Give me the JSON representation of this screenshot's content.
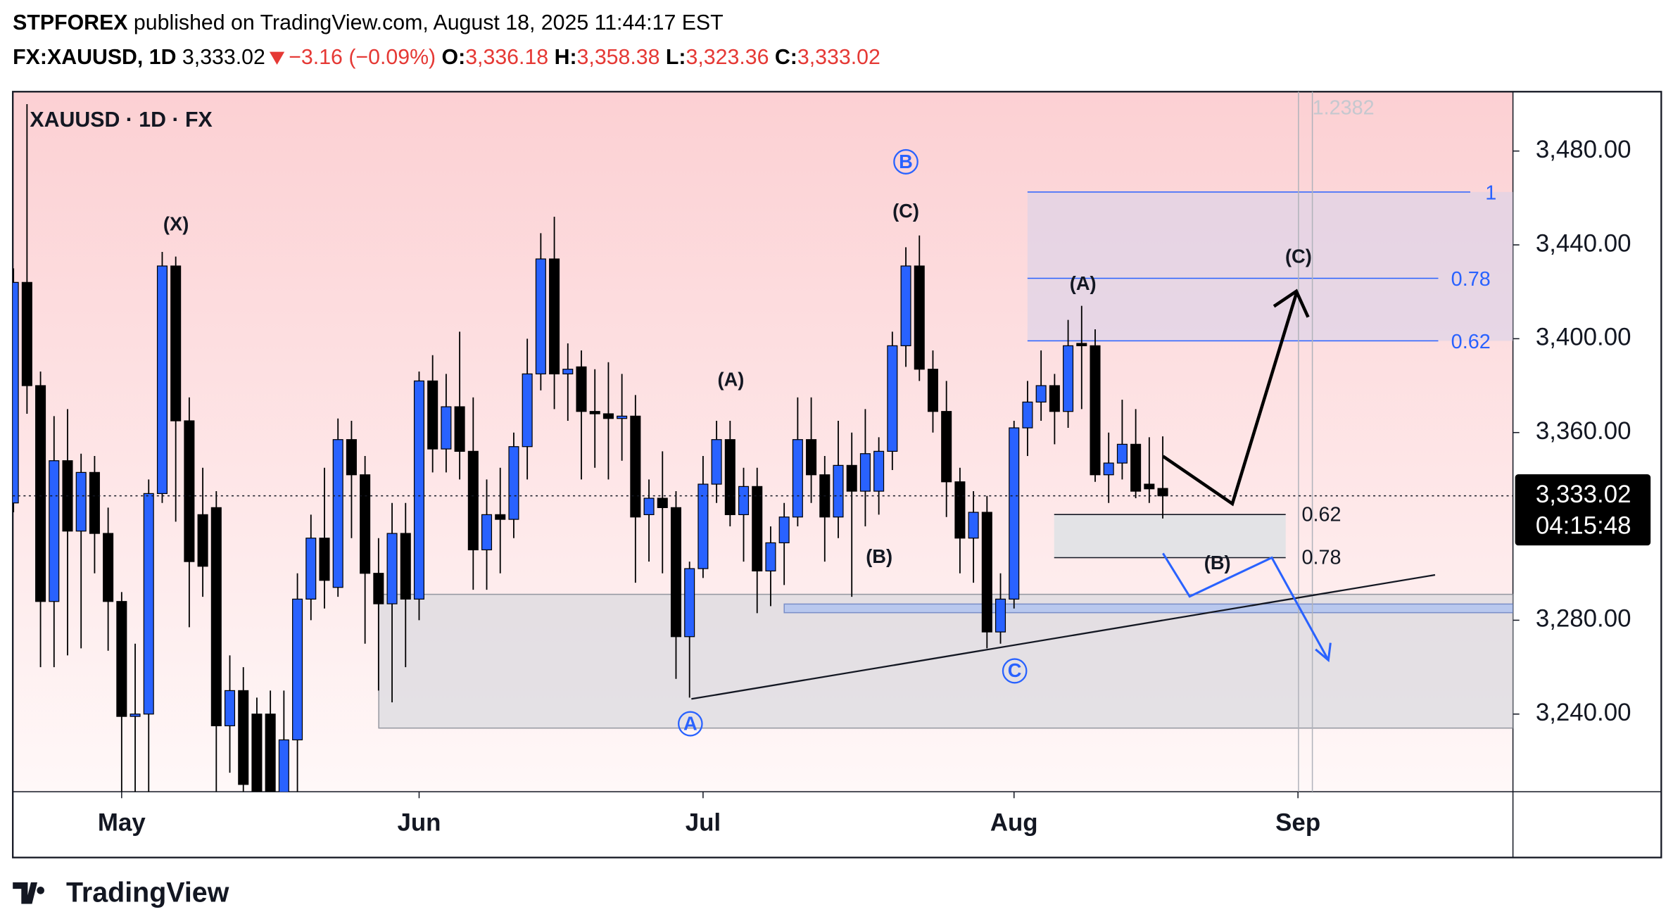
{
  "header": {
    "author": "STPFOREX",
    "published": "published on TradingView.com, August 18, 2025 11:44:17 EST",
    "symbol": "FX:XAUUSD, 1D",
    "price": "3,333.02",
    "change": "−3.16 (−0.09%)",
    "o_label": "O:",
    "o": "3,336.18",
    "h_label": "H:",
    "h": "3,358.38",
    "l_label": "L:",
    "l": "3,323.36",
    "c_label": "C:",
    "c": "3,333.02"
  },
  "footer": {
    "brand": "TradingView"
  },
  "chart_data": {
    "type": "candlestick",
    "title": "XAUUSD · 1D · FX",
    "up_color": "#2962ff",
    "down_color": "#000000",
    "xlim": [
      -0.05,
      110.9
    ],
    "ylim": [
      3206.9,
      3505.3
    ],
    "xticks": [
      {
        "value": 8,
        "label": "May"
      },
      {
        "value": 30,
        "label": "Jun"
      },
      {
        "value": 51,
        "label": "Jul"
      },
      {
        "value": 74,
        "label": "Aug"
      },
      {
        "value": 95,
        "label": "Sep"
      }
    ],
    "yticks": [
      {
        "value": 3240,
        "label": "3,240.00"
      },
      {
        "value": 3280,
        "label": "3,280.00"
      },
      {
        "value": 3360,
        "label": "3,360.00"
      },
      {
        "value": 3400,
        "label": "3,400.00"
      },
      {
        "value": 3440,
        "label": "3,440.00"
      },
      {
        "value": 3480,
        "label": "3,480.00"
      }
    ],
    "last_price": {
      "value": 3333.02,
      "label": "3,333.02"
    },
    "countdown": "04:15:48",
    "open": [
      3330,
      3424,
      3380,
      3288,
      3348,
      3318,
      3343,
      3317,
      3288,
      3239,
      3240,
      3334,
      3431,
      3365,
      3325,
      3328,
      3235,
      3250,
      3240,
      3240,
      3205,
      3229,
      3289,
      3315,
      3294,
      3357,
      3342,
      3300,
      3287,
      3317,
      3289,
      3382,
      3353,
      3371,
      3352,
      3310,
      3325,
      3323,
      3354,
      3385,
      3434,
      3385,
      3388,
      3369,
      3368,
      3366,
      3367,
      3325,
      3332,
      3328,
      3273,
      3302,
      3338,
      3357,
      3325,
      3337,
      3301,
      3313,
      3324,
      3357,
      3342,
      3324,
      3346,
      3335,
      3335,
      3352,
      3397,
      3431,
      3387,
      3369,
      3339,
      3315,
      3326,
      3275,
      3289,
      3362,
      3373,
      3380,
      3369,
      3398,
      3397,
      3342,
      3347,
      3355,
      3338,
      3336.18
    ],
    "high": [
      3430,
      3500,
      3386,
      3367,
      3370,
      3351,
      3350,
      3328,
      3292,
      3270,
      3340,
      3437,
      3435,
      3375,
      3345,
      3335,
      3265,
      3260,
      3247,
      3250,
      3250,
      3300,
      3325,
      3345,
      3366,
      3365,
      3350,
      3315,
      3330,
      3330,
      3386,
      3393,
      3385,
      3403,
      3375,
      3340,
      3345,
      3360,
      3400,
      3445,
      3452,
      3398,
      3395,
      3387,
      3390,
      3385,
      3376,
      3340,
      3352,
      3335,
      3305,
      3350,
      3365,
      3365,
      3345,
      3345,
      3320,
      3330,
      3375,
      3375,
      3350,
      3365,
      3360,
      3370,
      3358,
      3403,
      3439,
      3444,
      3395,
      3382,
      3345,
      3335,
      3333,
      3300,
      3365,
      3382,
      3395,
      3385,
      3408,
      3414,
      3404,
      3360,
      3374,
      3370,
      3358,
      3358.38
    ],
    "low": [
      3326,
      3368,
      3260,
      3260,
      3265,
      3268,
      3300,
      3267,
      3202,
      3202,
      3202,
      3330,
      3322,
      3277,
      3290,
      3207,
      3215,
      3200,
      3190,
      3200,
      3200,
      3205,
      3280,
      3285,
      3290,
      3315,
      3270,
      3250,
      3245,
      3260,
      3280,
      3343,
      3343,
      3340,
      3293,
      3293,
      3300,
      3315,
      3340,
      3378,
      3370,
      3365,
      3340,
      3345,
      3340,
      3348,
      3296,
      3305,
      3300,
      3255,
      3247,
      3298,
      3330,
      3320,
      3305,
      3283,
      3286,
      3295,
      3320,
      3330,
      3305,
      3315,
      3290,
      3320,
      3325,
      3344,
      3388,
      3382,
      3360,
      3324,
      3300,
      3296,
      3268,
      3270,
      3285,
      3350,
      3365,
      3355,
      3362,
      3370,
      3339,
      3330,
      3340,
      3332,
      3330,
      3323.36
    ],
    "close": [
      3424,
      3380,
      3288,
      3348,
      3318,
      3343,
      3317,
      3288,
      3239,
      3240,
      3334,
      3431,
      3365,
      3305,
      3303,
      3235,
      3250,
      3210,
      3205,
      3205,
      3229,
      3289,
      3315,
      3297,
      3357,
      3342,
      3300,
      3287,
      3317,
      3289,
      3382,
      3353,
      3371,
      3352,
      3310,
      3325,
      3323,
      3354,
      3385,
      3434,
      3385,
      3387,
      3369,
      3368,
      3366,
      3367,
      3324,
      3332,
      3328,
      3273,
      3302,
      3338,
      3357,
      3325,
      3337,
      3301,
      3313,
      3324,
      3357,
      3342,
      3324,
      3346,
      3335,
      3351,
      3352,
      3397,
      3431,
      3387,
      3369,
      3339,
      3315,
      3326,
      3275,
      3289,
      3362,
      3373,
      3380,
      3369,
      3397,
      3397,
      3342,
      3347,
      3355,
      3335,
      3336,
      3333.02
    ],
    "annotations": [
      "(X)",
      "B",
      "(C)",
      "(A)",
      "(B)",
      "C",
      "A",
      "(A)",
      "(C)",
      "(B)",
      "1",
      "0.78",
      "0.62",
      "0.62",
      "0.78",
      "1.2382"
    ]
  }
}
